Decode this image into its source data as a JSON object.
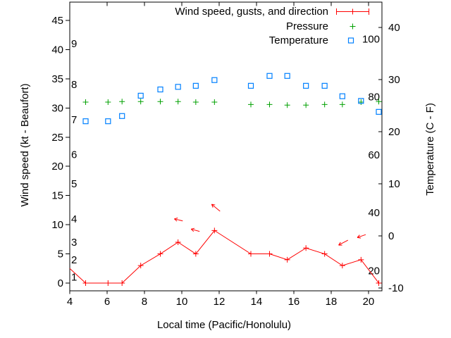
{
  "chart_data": {
    "type": "line",
    "title": "",
    "xlabel": "Local time (Pacific/Honolulu)",
    "ylabel_left": "Wind speed (kt - Beaufort)",
    "ylabel_right": "Temperature (C - F)",
    "x_range": [
      4,
      20.72
    ],
    "wind_range": [
      -1.33,
      48.14
    ],
    "temp_range": [
      -10.54,
      44.86
    ],
    "x_ticks": [
      4,
      6,
      8,
      10,
      12,
      14,
      16,
      18,
      20
    ],
    "y_left_ticks": [
      0,
      5,
      10,
      15,
      20,
      25,
      30,
      35,
      40,
      45
    ],
    "y_right_ticks": [
      -10,
      0,
      10,
      20,
      30,
      40
    ],
    "beaufort_labels": [
      {
        "label": "1",
        "kt": 1
      },
      {
        "label": "2",
        "kt": 4
      },
      {
        "label": "3",
        "kt": 7
      },
      {
        "label": "4",
        "kt": 11
      },
      {
        "label": "5",
        "kt": 17
      },
      {
        "label": "6",
        "kt": 22
      },
      {
        "label": "7",
        "kt": 28
      },
      {
        "label": "8",
        "kt": 34
      },
      {
        "label": "9",
        "kt": 41
      }
    ],
    "fahrenheit_labels": [
      {
        "label": "20",
        "f": 20
      },
      {
        "label": "40",
        "f": 40
      },
      {
        "label": "60",
        "f": 60
      },
      {
        "label": "80",
        "f": 80
      },
      {
        "label": "100",
        "f": 100
      }
    ],
    "legend": [
      {
        "label": "Wind speed, gusts, and direction",
        "marker": "errorbar",
        "color": "#ff0000"
      },
      {
        "label": "Pressure",
        "marker": "plus",
        "color": "#00a000"
      },
      {
        "label": "Temperature",
        "marker": "square",
        "color": "#0080ff"
      }
    ],
    "legend_position": "top-right-inside",
    "grid": false,
    "axis_color": "#000000",
    "times": [
      4.85,
      6.05,
      6.8,
      7.8,
      8.85,
      9.8,
      10.75,
      11.75,
      13.7,
      14.7,
      15.65,
      16.65,
      17.65,
      18.6,
      19.6,
      20.55
    ],
    "series": {
      "wind": {
        "name": "Wind speed, gusts, and direction",
        "color": "#ff0000",
        "lead_point": {
          "t": 4.0,
          "v": 2.5
        },
        "values": [
          0,
          0,
          0,
          3,
          5,
          7,
          5,
          9,
          5,
          5,
          4,
          6,
          5,
          3,
          4,
          0
        ]
      },
      "gust_arrows": {
        "color": "#ff0000",
        "arrows": [
          {
            "tail": [
              10.05,
              10.65
            ],
            "head": [
              9.6,
              11.0
            ]
          },
          {
            "tail": [
              10.95,
              8.85
            ],
            "head": [
              10.5,
              9.25
            ]
          },
          {
            "tail": [
              12.05,
              12.3
            ],
            "head": [
              11.6,
              13.5
            ]
          },
          {
            "tail": [
              18.9,
              7.35
            ],
            "head": [
              18.4,
              6.5
            ]
          },
          {
            "tail": [
              19.85,
              8.3
            ],
            "head": [
              19.4,
              7.8
            ]
          }
        ]
      },
      "pressure": {
        "name": "Pressure",
        "color": "#00a000",
        "values": [
          31.0,
          31.0,
          31.1,
          31.1,
          31.1,
          31.1,
          31.0,
          31.0,
          30.6,
          30.6,
          30.5,
          30.5,
          30.6,
          30.6,
          31.0,
          31.1
        ]
      },
      "temperature": {
        "name": "Temperature",
        "color": "#0080ff",
        "values": [
          22.0,
          22.0,
          23.0,
          26.9,
          28.1,
          28.6,
          28.8,
          29.9,
          28.8,
          30.7,
          30.7,
          28.8,
          28.8,
          26.8,
          25.9,
          23.8
        ]
      }
    }
  }
}
